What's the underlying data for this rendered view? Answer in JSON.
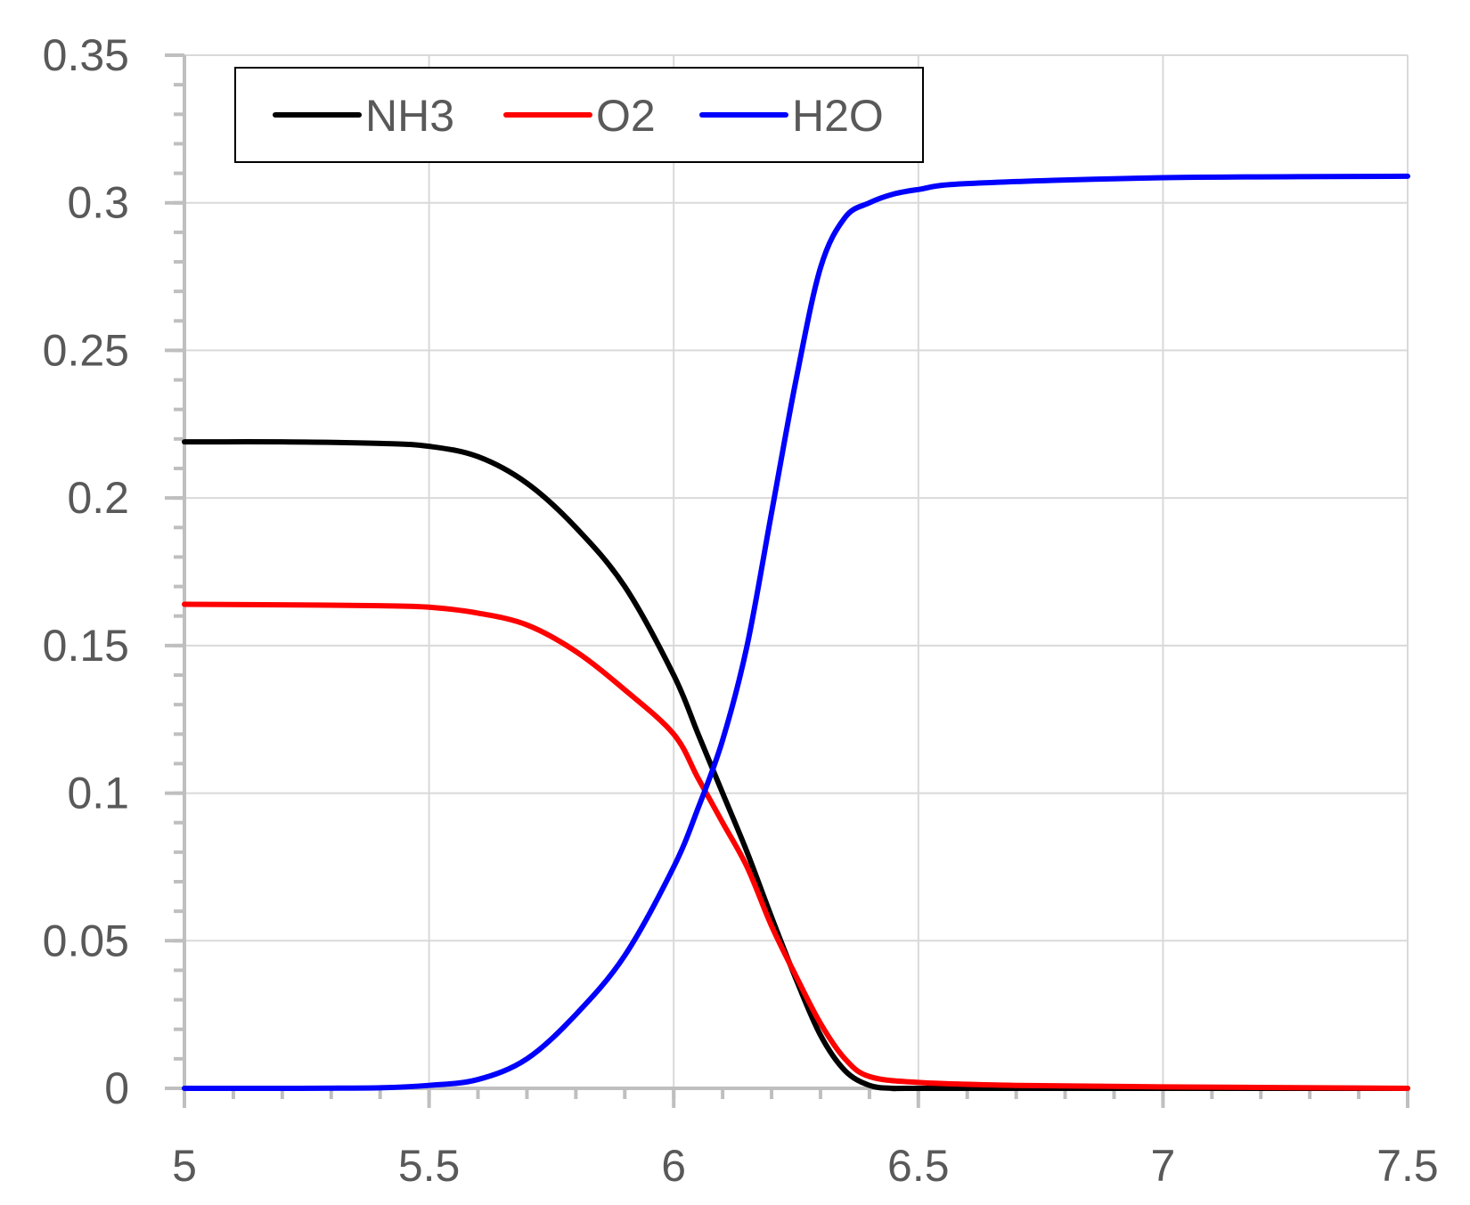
{
  "chart_data": {
    "type": "line",
    "title": "",
    "xlabel": "",
    "ylabel": "",
    "xlim": [
      5,
      7.5
    ],
    "ylim": [
      0,
      0.35
    ],
    "x_ticks": [
      5,
      5.5,
      6,
      6.5,
      7,
      7.5
    ],
    "x_tick_labels": [
      "5",
      "5.5",
      "6",
      "6.5",
      "7",
      "7.5"
    ],
    "y_ticks": [
      0,
      0.05,
      0.1,
      0.15,
      0.2,
      0.25,
      0.3,
      0.35
    ],
    "y_tick_labels": [
      "0",
      "0.05",
      "0.1",
      "0.15",
      "0.2",
      "0.25",
      "0.3",
      "0.35"
    ],
    "grid": true,
    "legend_position": "top-left",
    "series": [
      {
        "name": "NH3",
        "color": "#000000",
        "points": [
          [
            5.0,
            0.219
          ],
          [
            5.2,
            0.219
          ],
          [
            5.4,
            0.2185
          ],
          [
            5.5,
            0.2175
          ],
          [
            5.6,
            0.214
          ],
          [
            5.7,
            0.205
          ],
          [
            5.8,
            0.19
          ],
          [
            5.9,
            0.17
          ],
          [
            6.0,
            0.14
          ],
          [
            6.05,
            0.12
          ],
          [
            6.1,
            0.1
          ],
          [
            6.15,
            0.08
          ],
          [
            6.2,
            0.058
          ],
          [
            6.25,
            0.037
          ],
          [
            6.3,
            0.018
          ],
          [
            6.35,
            0.006
          ],
          [
            6.4,
            0.001
          ],
          [
            6.45,
            0.0
          ],
          [
            6.5,
            0.0
          ],
          [
            7.0,
            0.0
          ],
          [
            7.5,
            0.0
          ]
        ]
      },
      {
        "name": "O2",
        "color": "#ff0000",
        "points": [
          [
            5.0,
            0.164
          ],
          [
            5.2,
            0.1638
          ],
          [
            5.4,
            0.1635
          ],
          [
            5.5,
            0.163
          ],
          [
            5.6,
            0.161
          ],
          [
            5.7,
            0.157
          ],
          [
            5.8,
            0.148
          ],
          [
            5.9,
            0.135
          ],
          [
            6.0,
            0.12
          ],
          [
            6.05,
            0.105
          ],
          [
            6.1,
            0.09
          ],
          [
            6.15,
            0.075
          ],
          [
            6.2,
            0.055
          ],
          [
            6.25,
            0.038
          ],
          [
            6.3,
            0.022
          ],
          [
            6.35,
            0.01
          ],
          [
            6.4,
            0.004
          ],
          [
            6.5,
            0.002
          ],
          [
            6.7,
            0.001
          ],
          [
            7.0,
            0.0005
          ],
          [
            7.5,
            0.0
          ]
        ]
      },
      {
        "name": "H2O",
        "color": "#0000ff",
        "points": [
          [
            5.0,
            0.0
          ],
          [
            5.2,
            0.0
          ],
          [
            5.4,
            0.0002
          ],
          [
            5.5,
            0.001
          ],
          [
            5.6,
            0.003
          ],
          [
            5.7,
            0.01
          ],
          [
            5.8,
            0.025
          ],
          [
            5.9,
            0.045
          ],
          [
            6.0,
            0.075
          ],
          [
            6.05,
            0.095
          ],
          [
            6.1,
            0.118
          ],
          [
            6.15,
            0.15
          ],
          [
            6.2,
            0.195
          ],
          [
            6.25,
            0.24
          ],
          [
            6.3,
            0.278
          ],
          [
            6.35,
            0.295
          ],
          [
            6.4,
            0.3
          ],
          [
            6.45,
            0.303
          ],
          [
            6.5,
            0.3045
          ],
          [
            6.6,
            0.3065
          ],
          [
            7.0,
            0.3085
          ],
          [
            7.5,
            0.309
          ]
        ]
      }
    ]
  }
}
